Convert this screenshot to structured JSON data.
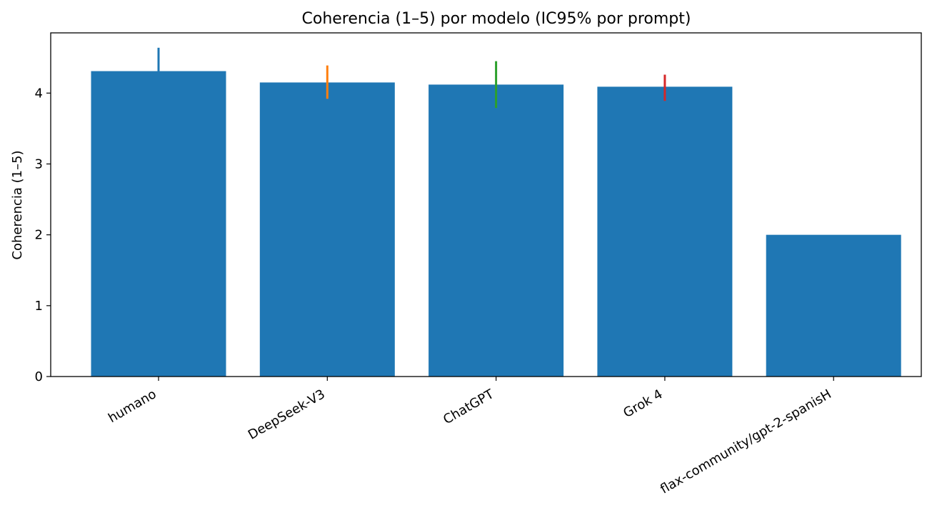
{
  "chart_data": {
    "type": "bar",
    "title": "Coherencia (1–5) por modelo (IC95% por prompt)",
    "xlabel": "",
    "ylabel": "Coherencia (1–5)",
    "ylim": [
      0,
      4.85
    ],
    "yticks": [
      "0",
      "1",
      "2",
      "3",
      "4"
    ],
    "categories": [
      "humano",
      "DeepSeek-V3",
      "ChatGPT",
      "Grok 4",
      "flax-community/gpt-2-spanisH"
    ],
    "values": [
      4.31,
      4.15,
      4.12,
      4.09,
      2.0
    ],
    "ci_low": [
      4.0,
      3.92,
      3.79,
      3.89,
      null
    ],
    "ci_high": [
      4.64,
      4.39,
      4.45,
      4.26,
      null
    ],
    "bar_color": "#1f77b4",
    "error_colors": [
      "#1f77b4",
      "#ff7f0e",
      "#2ca02c",
      "#d62728",
      "#9467bd"
    ],
    "grid": false,
    "legend": "none"
  }
}
